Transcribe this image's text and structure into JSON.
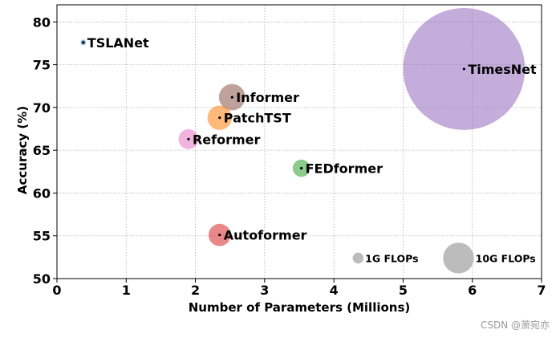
{
  "chart_data": {
    "type": "scatter",
    "title": "",
    "xlabel": "Number of Parameters (Millions)",
    "ylabel": "Accuracy (%)",
    "xlim": [
      0,
      7
    ],
    "ylim": [
      50,
      82
    ],
    "xticks": [
      0,
      1,
      2,
      3,
      4,
      5,
      6,
      7
    ],
    "yticks": [
      50,
      55,
      60,
      65,
      70,
      75,
      80
    ],
    "grid": true,
    "points": [
      {
        "label": "TSLANet",
        "x": 0.38,
        "y": 77.6,
        "flops_g": 0.3,
        "color": "#1f77b4"
      },
      {
        "label": "TimesNet",
        "x": 5.88,
        "y": 74.5,
        "flops_g": 150.0,
        "color": "#9467bd"
      },
      {
        "label": "Informer",
        "x": 2.53,
        "y": 71.2,
        "flops_g": 7.0,
        "color": "#8c564b"
      },
      {
        "label": "PatchTST",
        "x": 2.35,
        "y": 68.8,
        "flops_g": 6.0,
        "color": "#ff7f0e"
      },
      {
        "label": "Reformer",
        "x": 1.9,
        "y": 66.3,
        "flops_g": 4.0,
        "color": "#e377c2"
      },
      {
        "label": "FEDformer",
        "x": 3.53,
        "y": 62.9,
        "flops_g": 3.0,
        "color": "#2ca02c"
      },
      {
        "label": "Autoformer",
        "x": 2.35,
        "y": 55.1,
        "flops_g": 5.0,
        "color": "#d62728"
      }
    ],
    "size_legend": [
      {
        "label": "1G FLOPs",
        "x": 4.35,
        "y": 52.4,
        "flops_g": 1,
        "color": "#a0a0a0"
      },
      {
        "label": "10G FLOPs",
        "x": 5.8,
        "y": 52.4,
        "flops_g": 10,
        "color": "#a0a0a0"
      }
    ]
  },
  "watermark": "CSDN @萧宛亦"
}
